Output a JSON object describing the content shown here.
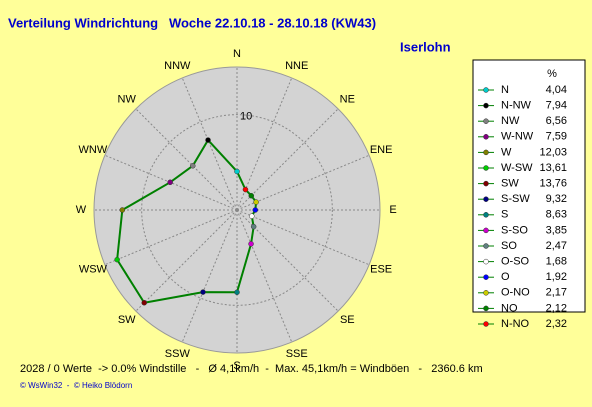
{
  "chart_data": {
    "type": "radar",
    "title": "Verteilung Windrichtung   Woche 22.10.18 - 28.10.18 (KW43)",
    "location": "Iserlohn",
    "legend_header": "%",
    "directions": [
      "N",
      "NNE",
      "NE",
      "ENE",
      "E",
      "ESE",
      "SE",
      "SSE",
      "S",
      "SSW",
      "SW",
      "WSW",
      "W",
      "WNW",
      "NW",
      "NNW"
    ],
    "categories": [
      "N",
      "N-NW",
      "NW",
      "W-NW",
      "W",
      "W-SW",
      "SW",
      "S-SW",
      "S",
      "S-SO",
      "SO",
      "O-SO",
      "O",
      "O-NO",
      "NO",
      "N-NO"
    ],
    "values": [
      4.04,
      7.94,
      6.56,
      7.59,
      12.03,
      13.61,
      13.76,
      9.32,
      8.63,
      3.85,
      2.47,
      1.68,
      1.92,
      2.17,
      2.12,
      2.32
    ],
    "value_labels": [
      "4,04",
      "7,94",
      "6,56",
      "7,59",
      "12,03",
      "13,61",
      "13,76",
      "9,32",
      "8,63",
      "3,85",
      "2,47",
      "1,68",
      "1,92",
      "2,17",
      "2,12",
      "2,32"
    ],
    "colors": [
      "#00cccc",
      "#000000",
      "#808080",
      "#800080",
      "#808000",
      "#00cc00",
      "#800000",
      "#000080",
      "#008080",
      "#cc00cc",
      "#608080",
      "#ffffff",
      "#0000ff",
      "#cccc00",
      "#008000",
      "#ff0000"
    ],
    "line_color": "#008000",
    "rlim": [
      0,
      15
    ],
    "rticks": [
      10
    ],
    "footer": "2028 / 0 Werte  -> 0.0% Windstille   -   Ø 4,1km/h  -  Max. 45,1km/h = Windböen   -   2360.6 km",
    "credits": "© WsWin32  -  © Heiko Blödorn"
  }
}
